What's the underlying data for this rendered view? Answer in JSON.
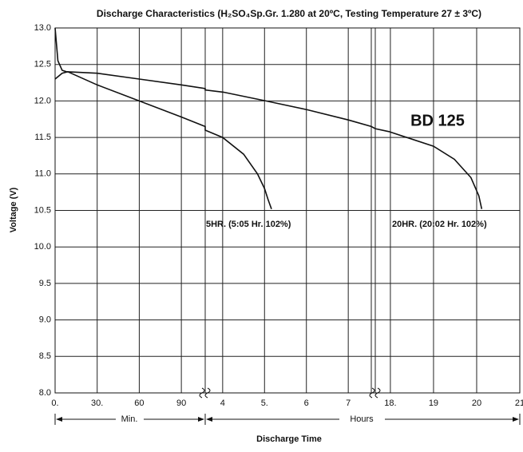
{
  "chart_data": {
    "type": "line",
    "title": "Discharge Characteristics (H₂SO₄Sp.Gr. 1.280 at 20ºC, Testing Temperature 27 ± 3ºC)",
    "y_label": "Voltage (V)",
    "x_label": "Discharge Time",
    "annotation": "BD 125",
    "x_unit_labels": [
      "Min.",
      "Hours"
    ],
    "x_segments": [
      [
        0,
        107
      ],
      [
        215,
        453
      ],
      [
        1059,
        1260
      ]
    ],
    "ylim": [
      8,
      13
    ],
    "yticks": [
      {
        "value": 8,
        "label": "8.0"
      },
      8.5,
      {
        "value": 9,
        "label": "9.0"
      },
      9.5,
      {
        "value": 10,
        "label": "10.0"
      },
      10.5,
      {
        "value": 11,
        "label": "11.0"
      },
      11.5,
      {
        "value": 12,
        "label": "12.0"
      },
      12.5,
      {
        "value": 13,
        "label": "13.0"
      }
    ],
    "xticks": [
      {
        "value": 0,
        "label": "0."
      },
      {
        "value": 30,
        "label": "30."
      },
      60,
      90,
      {
        "value": 240,
        "label": "4"
      },
      {
        "value": 300,
        "label": "5."
      },
      {
        "value": 360,
        "label": "6"
      },
      {
        "value": 420,
        "label": "7"
      },
      {
        "value": 1080,
        "label": "18."
      },
      {
        "value": 1140,
        "label": "19"
      },
      {
        "value": 1200,
        "label": "20"
      },
      {
        "value": 1260,
        "label": "21"
      }
    ],
    "grid": true,
    "series": [
      {
        "name": "5HR. (5:05 Hr. 102%)",
        "color": "#111111",
        "x": [
          0,
          5,
          9,
          30,
          60,
          90,
          107,
          215,
          240,
          270,
          290,
          300,
          305,
          310
        ],
        "values": [
          12.3,
          12.38,
          12.4,
          12.22,
          12.0,
          11.78,
          11.65,
          11.6,
          11.5,
          11.27,
          11.0,
          10.8,
          10.65,
          10.52
        ]
      },
      {
        "name": "20HR. (20:02 Hr. 102%)",
        "color": "#111111",
        "x": [
          0,
          2,
          5,
          8,
          30,
          60,
          90,
          107,
          215,
          241,
          302,
          361,
          420,
          453,
          1059,
          1078,
          1140,
          1169,
          1192,
          1203,
          1207
        ],
        "values": [
          13.0,
          12.55,
          12.42,
          12.4,
          12.38,
          12.3,
          12.22,
          12.17,
          12.15,
          12.12,
          12.0,
          11.88,
          11.74,
          11.65,
          11.62,
          11.58,
          11.38,
          11.2,
          10.95,
          10.7,
          10.52
        ]
      }
    ]
  }
}
